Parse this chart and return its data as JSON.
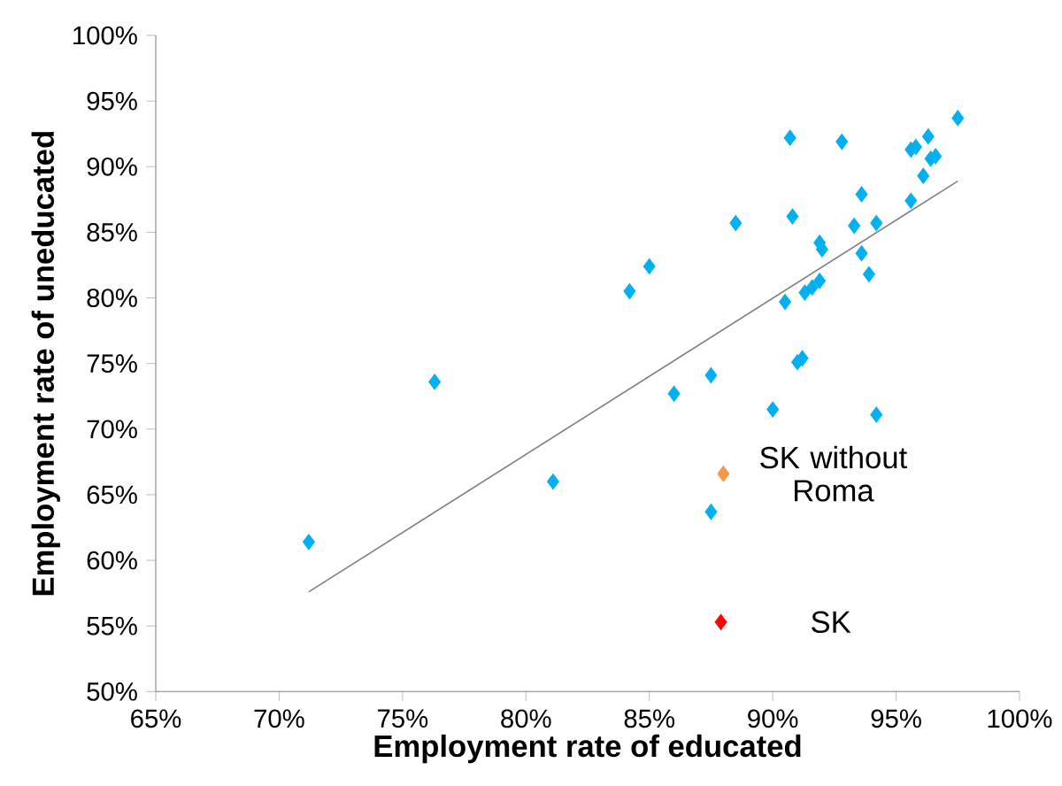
{
  "chart_data": {
    "type": "scatter",
    "xlabel": "Employment rate of educated",
    "ylabel": "Employment rate of uneducated",
    "marker": "diamond",
    "xlim": [
      65,
      100
    ],
    "ylim": [
      50,
      100
    ],
    "xticks": [
      {
        "value": 65,
        "label": "65%"
      },
      {
        "value": 70,
        "label": "70%"
      },
      {
        "value": 75,
        "label": "75%"
      },
      {
        "value": 80,
        "label": "80%"
      },
      {
        "value": 85,
        "label": "85%"
      },
      {
        "value": 90,
        "label": "90%"
      },
      {
        "value": 95,
        "label": "95%"
      },
      {
        "value": 100,
        "label": "100%"
      }
    ],
    "yticks": [
      {
        "value": 50,
        "label": "50%"
      },
      {
        "value": 55,
        "label": "55%"
      },
      {
        "value": 60,
        "label": "60%"
      },
      {
        "value": 65,
        "label": "65%"
      },
      {
        "value": 70,
        "label": "70%"
      },
      {
        "value": 75,
        "label": "75%"
      },
      {
        "value": 80,
        "label": "80%"
      },
      {
        "value": 85,
        "label": "85%"
      },
      {
        "value": 90,
        "label": "90%"
      },
      {
        "value": 95,
        "label": "95%"
      },
      {
        "value": 100,
        "label": "100%"
      }
    ],
    "series": [
      {
        "color": "#00b0f0",
        "x": [
          71.2,
          76.3,
          81.1,
          84.2,
          85.0,
          86.0,
          87.5,
          87.5,
          88.5,
          90.0,
          90.5,
          90.7,
          90.8,
          91.0,
          91.2,
          91.3,
          91.6,
          91.9,
          91.9,
          92.0,
          92.8,
          93.3,
          93.6,
          93.6,
          93.9,
          94.2,
          94.2,
          95.6,
          95.6,
          95.8,
          96.1,
          96.3,
          96.4,
          96.6,
          97.5
        ],
        "values": [
          61.4,
          73.6,
          66.0,
          80.5,
          82.4,
          72.7,
          74.1,
          63.7,
          85.7,
          71.5,
          79.7,
          92.2,
          86.2,
          75.1,
          75.4,
          80.4,
          80.8,
          81.3,
          84.2,
          83.7,
          91.9,
          85.5,
          87.9,
          83.4,
          81.8,
          85.7,
          71.1,
          87.4,
          91.3,
          91.5,
          89.3,
          92.3,
          90.6,
          90.8,
          93.7
        ]
      },
      {
        "type": "line",
        "marker": "none",
        "color": "#808080",
        "x": [
          71.2,
          97.5
        ],
        "values": [
          57.6,
          88.9
        ]
      },
      {
        "name": "SK without Roma",
        "color": "#f79646",
        "x": [
          88.0
        ],
        "values": [
          66.6
        ]
      },
      {
        "name": "SK",
        "color": "#ff0000",
        "x": [
          87.9
        ],
        "values": [
          55.3
        ]
      }
    ]
  }
}
